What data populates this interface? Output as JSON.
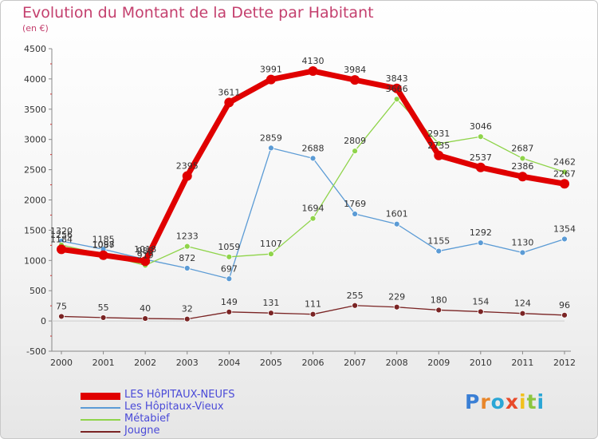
{
  "title": "Evolution du Montant de la Dette par Habitant",
  "subtitle": "(en €)",
  "logo": {
    "letters": [
      "P",
      "r",
      "o",
      "x",
      "i",
      "t",
      "i"
    ],
    "colors": [
      "#3a7fd5",
      "#e8862a",
      "#2aa6d6",
      "#e84a2a",
      "#f2c11c",
      "#8cc63f",
      "#2aa6d6"
    ]
  },
  "chart_data": {
    "type": "line",
    "x": [
      "2000",
      "2001",
      "2002",
      "2003",
      "2004",
      "2005",
      "2006",
      "2007",
      "2008",
      "2009",
      "2010",
      "2011",
      "2012"
    ],
    "ylim": [
      -500,
      4500
    ],
    "yticks": [
      -500,
      0,
      500,
      1000,
      1500,
      2000,
      2500,
      3000,
      3500,
      4000,
      4500
    ],
    "grid": false,
    "legend_position": "bottom-left",
    "series": [
      {
        "name": "LES HôPITAUX-NEUFS",
        "color": "#e00000",
        "width": 7,
        "marker": 6,
        "values": [
          1184,
          1087,
          988,
          2395,
          3611,
          3991,
          4130,
          3984,
          3843,
          2735,
          2537,
          2386,
          2267
        ],
        "labels": [
          "1184",
          "1087",
          "988",
          "2395",
          "3611",
          "3991",
          "4130",
          "3984",
          "3843",
          "2735",
          "2537",
          "2386",
          "2267"
        ]
      },
      {
        "name": "Les Hôpitaux-Vieux",
        "color": "#5b9bd5",
        "width": 1.3,
        "marker": 3.5,
        "values": [
          1320,
          1185,
          1018,
          872,
          697,
          2859,
          2688,
          1769,
          1601,
          1155,
          1292,
          1130,
          1354
        ],
        "labels": [
          "1320",
          "1185",
          "1018",
          "872",
          "697",
          "2859",
          "2688",
          "1769",
          "1601",
          "1155",
          "1292",
          "1130",
          "1354"
        ]
      },
      {
        "name": "Métabief",
        "color": "#8fd44a",
        "width": 1.3,
        "marker": 3.5,
        "values": [
          1256,
          1098,
          919,
          1233,
          1059,
          1107,
          1694,
          2809,
          3666,
          2931,
          3046,
          2687,
          2462
        ],
        "labels": [
          "1256",
          "1098",
          "919",
          "1233",
          "1059",
          "1107",
          "1694",
          "2809",
          "3666",
          "2931",
          "3046",
          "2687",
          "2462"
        ]
      },
      {
        "name": "Jougne",
        "color": "#7a2424",
        "width": 1.3,
        "marker": 3.5,
        "values": [
          75,
          55,
          40,
          32,
          149,
          131,
          111,
          255,
          229,
          180,
          154,
          124,
          96
        ],
        "labels": [
          "75",
          "55",
          "40",
          "32",
          "149",
          "131",
          "111",
          "255",
          "229",
          "180",
          "154",
          "124",
          "96"
        ]
      }
    ]
  }
}
